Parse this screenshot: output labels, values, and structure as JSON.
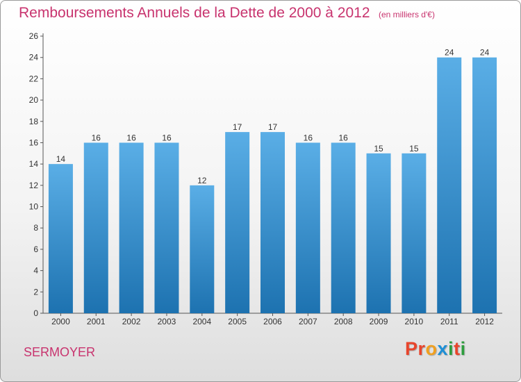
{
  "header": {
    "title": "Remboursements Annuels de la Dette de 2000 à 2012",
    "unit": "(en milliers d'€)"
  },
  "footer": {
    "city": "SERMOYER",
    "logo": "Proxiti",
    "logo_colors": [
      "#e8452c",
      "#e8452c",
      "#f0a020",
      "#1e8fd6",
      "#2e9e3e",
      "#e8452c",
      "#2e9e3e"
    ]
  },
  "colors": {
    "title": "#c8336e",
    "bar_top": "#5aaee6",
    "bar_bottom": "#1d72b0"
  },
  "chart_data": {
    "type": "bar",
    "categories": [
      "2000",
      "2001",
      "2002",
      "2003",
      "2004",
      "2005",
      "2006",
      "2007",
      "2008",
      "2009",
      "2010",
      "2011",
      "2012"
    ],
    "values": [
      14,
      16,
      16,
      16,
      12,
      17,
      17,
      16,
      16,
      15,
      15,
      24,
      24
    ],
    "ylim": [
      0,
      26
    ],
    "yticks": [
      0,
      2,
      4,
      6,
      8,
      10,
      12,
      14,
      16,
      18,
      20,
      22,
      24,
      26
    ],
    "grid": false,
    "data_labels": true
  }
}
